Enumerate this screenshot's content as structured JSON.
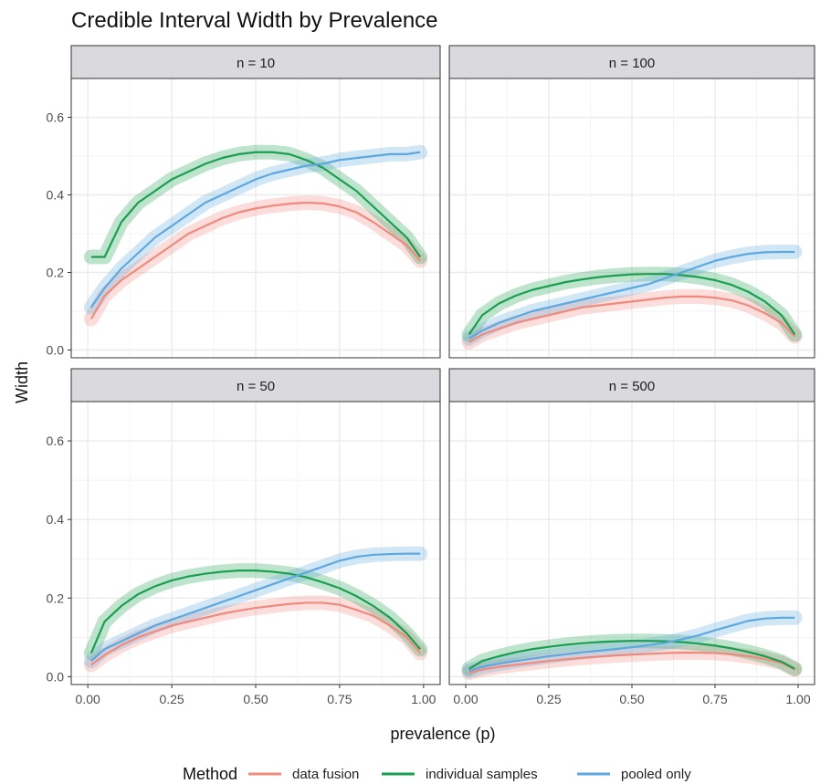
{
  "chart_data": {
    "type": "line",
    "title": "Credible Interval Width by Prevalence",
    "xlabel": "prevalence (p)",
    "ylabel": "Width",
    "xlim": [
      0,
      1
    ],
    "ylim": [
      -0.02,
      0.7
    ],
    "x_ticks": [
      "0.00",
      "0.25",
      "0.50",
      "0.75",
      "1.00"
    ],
    "y_ticks": [
      "0.0",
      "0.2",
      "0.4",
      "0.6"
    ],
    "grid": true,
    "legend_position": "bottom",
    "legend_title": "Method",
    "colors": {
      "data fusion": "#F08A7E",
      "individual samples": "#1A9E50",
      "pooled only": "#5DA8E0",
      "strip": "#D9D9DE",
      "panel_border": "#333333",
      "grid": "#EBEBEB"
    },
    "x": [
      0.01,
      0.05,
      0.1,
      0.15,
      0.2,
      0.25,
      0.3,
      0.35,
      0.4,
      0.45,
      0.5,
      0.55,
      0.6,
      0.65,
      0.7,
      0.75,
      0.8,
      0.85,
      0.9,
      0.95,
      0.99
    ],
    "panels": [
      {
        "label": "n =  10",
        "series": [
          {
            "name": "data fusion",
            "values": [
              0.08,
              0.14,
              0.18,
              0.21,
              0.24,
              0.27,
              0.3,
              0.32,
              0.34,
              0.355,
              0.365,
              0.372,
              0.377,
              0.38,
              0.378,
              0.37,
              0.355,
              0.33,
              0.3,
              0.27,
              0.23
            ]
          },
          {
            "name": "individual samples",
            "values": [
              0.24,
              0.24,
              0.33,
              0.38,
              0.41,
              0.44,
              0.46,
              0.48,
              0.495,
              0.505,
              0.51,
              0.51,
              0.505,
              0.49,
              0.47,
              0.44,
              0.41,
              0.37,
              0.33,
              0.29,
              0.24
            ]
          },
          {
            "name": "pooled only",
            "values": [
              0.11,
              0.16,
              0.21,
              0.25,
              0.29,
              0.32,
              0.35,
              0.38,
              0.4,
              0.42,
              0.44,
              0.455,
              0.465,
              0.475,
              0.48,
              0.49,
              0.495,
              0.5,
              0.505,
              0.505,
              0.51
            ]
          }
        ]
      },
      {
        "label": "n =  100",
        "series": [
          {
            "name": "data fusion",
            "values": [
              0.02,
              0.04,
              0.055,
              0.07,
              0.08,
              0.09,
              0.1,
              0.11,
              0.115,
              0.12,
              0.125,
              0.13,
              0.135,
              0.138,
              0.138,
              0.135,
              0.128,
              0.115,
              0.095,
              0.07,
              0.035
            ]
          },
          {
            "name": "individual samples",
            "values": [
              0.04,
              0.09,
              0.12,
              0.14,
              0.155,
              0.165,
              0.175,
              0.182,
              0.188,
              0.192,
              0.195,
              0.196,
              0.196,
              0.193,
              0.188,
              0.18,
              0.168,
              0.15,
              0.125,
              0.09,
              0.04
            ]
          },
          {
            "name": "pooled only",
            "values": [
              0.03,
              0.05,
              0.07,
              0.085,
              0.1,
              0.11,
              0.12,
              0.13,
              0.14,
              0.15,
              0.16,
              0.17,
              0.185,
              0.2,
              0.215,
              0.23,
              0.24,
              0.248,
              0.252,
              0.253,
              0.253
            ]
          }
        ]
      },
      {
        "label": "n =  50",
        "series": [
          {
            "name": "data fusion",
            "values": [
              0.03,
              0.055,
              0.08,
              0.1,
              0.115,
              0.13,
              0.14,
              0.15,
              0.16,
              0.168,
              0.175,
              0.18,
              0.185,
              0.188,
              0.188,
              0.183,
              0.17,
              0.155,
              0.13,
              0.1,
              0.06
            ]
          },
          {
            "name": "individual samples",
            "values": [
              0.06,
              0.14,
              0.18,
              0.21,
              0.23,
              0.245,
              0.255,
              0.262,
              0.267,
              0.27,
              0.27,
              0.267,
              0.262,
              0.253,
              0.24,
              0.225,
              0.205,
              0.18,
              0.15,
              0.11,
              0.07
            ]
          },
          {
            "name": "pooled only",
            "values": [
              0.04,
              0.07,
              0.09,
              0.11,
              0.13,
              0.145,
              0.16,
              0.175,
              0.19,
              0.205,
              0.22,
              0.235,
              0.25,
              0.265,
              0.28,
              0.295,
              0.305,
              0.31,
              0.312,
              0.313,
              0.313
            ]
          }
        ]
      },
      {
        "label": "n =  500",
        "series": [
          {
            "name": "data fusion",
            "values": [
              0.01,
              0.018,
              0.025,
              0.03,
              0.035,
              0.04,
              0.044,
              0.048,
              0.051,
              0.054,
              0.056,
              0.058,
              0.06,
              0.061,
              0.061,
              0.06,
              0.057,
              0.052,
              0.045,
              0.035,
              0.018
            ]
          },
          {
            "name": "individual samples",
            "values": [
              0.02,
              0.04,
              0.052,
              0.062,
              0.07,
              0.076,
              0.081,
              0.085,
              0.088,
              0.09,
              0.091,
              0.091,
              0.09,
              0.088,
              0.084,
              0.079,
              0.072,
              0.063,
              0.052,
              0.038,
              0.02
            ]
          },
          {
            "name": "pooled only",
            "values": [
              0.015,
              0.025,
              0.033,
              0.04,
              0.046,
              0.052,
              0.057,
              0.062,
              0.066,
              0.07,
              0.075,
              0.08,
              0.086,
              0.095,
              0.105,
              0.118,
              0.13,
              0.142,
              0.148,
              0.15,
              0.15
            ]
          }
        ]
      }
    ]
  }
}
